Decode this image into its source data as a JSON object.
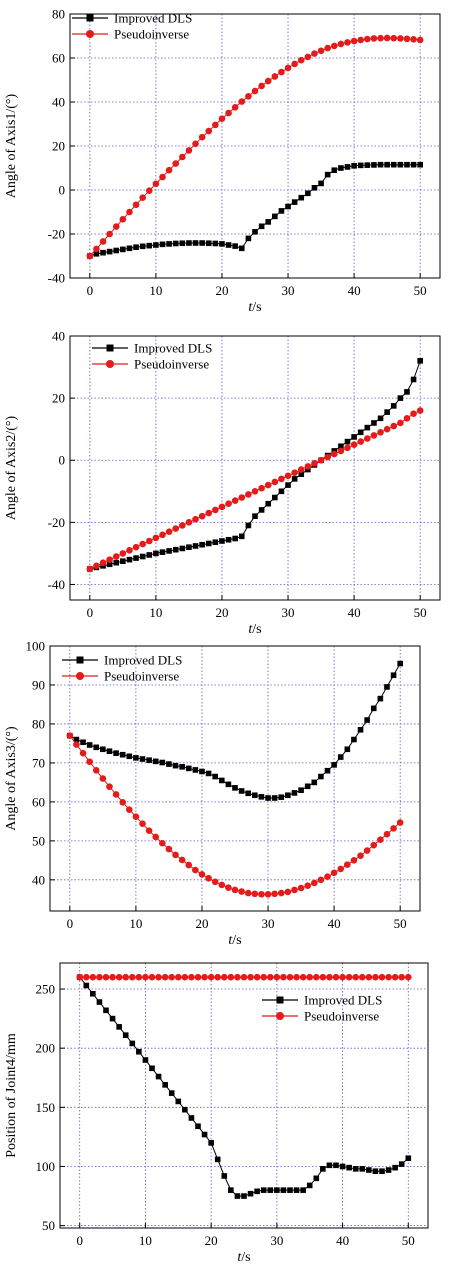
{
  "chart_data": [
    {
      "type": "line",
      "ylabel": "Angle of Axis1/(°)",
      "xlabel_italic": "t",
      "xlabel_unit": "/s",
      "xlim": [
        -3,
        53
      ],
      "ylim": [
        -40,
        80
      ],
      "xticks": [
        0,
        10,
        20,
        30,
        40,
        50
      ],
      "yticks": [
        -40,
        -20,
        0,
        20,
        40,
        60,
        80
      ],
      "grid": true,
      "legend_position": "top-left",
      "series": [
        {
          "name": "Improved DLS",
          "color": "#000000",
          "marker": "square",
          "x": [
            0,
            1,
            2,
            3,
            4,
            5,
            6,
            7,
            8,
            9,
            10,
            11,
            12,
            13,
            14,
            15,
            16,
            17,
            18,
            19,
            20,
            21,
            22,
            23,
            24,
            25,
            26,
            27,
            28,
            29,
            30,
            31,
            32,
            33,
            34,
            35,
            36,
            37,
            38,
            39,
            40,
            41,
            42,
            43,
            44,
            45,
            46,
            47,
            48,
            49,
            50
          ],
          "values": [
            -30,
            -29,
            -28.5,
            -28,
            -27.5,
            -27,
            -26.5,
            -26,
            -25.6,
            -25.3,
            -25,
            -24.7,
            -24.5,
            -24.3,
            -24.2,
            -24.1,
            -24.1,
            -24.1,
            -24.2,
            -24.3,
            -24.5,
            -25,
            -25.5,
            -26.5,
            -22,
            -19,
            -16.5,
            -14.5,
            -12,
            -9.5,
            -7.5,
            -5.5,
            -3.5,
            -1.5,
            1,
            3,
            7,
            9,
            10,
            10.5,
            11,
            11.2,
            11.3,
            11.4,
            11.5,
            11.5,
            11.5,
            11.5,
            11.5,
            11.5,
            11.5
          ]
        },
        {
          "name": "Pseudoinverse",
          "color": "#e51a1a",
          "marker": "circle",
          "x": [
            0,
            1,
            2,
            3,
            4,
            5,
            6,
            7,
            8,
            9,
            10,
            11,
            12,
            13,
            14,
            15,
            16,
            17,
            18,
            19,
            20,
            21,
            22,
            23,
            24,
            25,
            26,
            27,
            28,
            29,
            30,
            31,
            32,
            33,
            34,
            35,
            36,
            37,
            38,
            39,
            40,
            41,
            42,
            43,
            44,
            45,
            46,
            47,
            48,
            49,
            50
          ],
          "values": [
            -30,
            -26.8,
            -23.4,
            -20,
            -16.6,
            -13.3,
            -10,
            -6.7,
            -3.5,
            -0.3,
            2.8,
            5.9,
            9,
            12,
            15,
            18,
            21,
            24,
            26.8,
            29.6,
            32.4,
            35,
            37.6,
            40.2,
            42.6,
            45,
            47.3,
            49.5,
            51.6,
            53.6,
            55.5,
            57.3,
            59,
            60.5,
            62,
            63.3,
            64.5,
            65.5,
            66.4,
            67.1,
            67.7,
            68.2,
            68.6,
            68.9,
            69,
            69.1,
            69,
            68.9,
            68.7,
            68.5,
            68.2
          ]
        }
      ]
    },
    {
      "type": "line",
      "ylabel": "Angle of Axis2/(°)",
      "xlabel_italic": "t",
      "xlabel_unit": "/s",
      "xlim": [
        -3,
        53
      ],
      "ylim": [
        -45,
        40
      ],
      "xticks": [
        0,
        10,
        20,
        30,
        40,
        50
      ],
      "yticks": [
        -40,
        -20,
        0,
        20,
        40
      ],
      "grid": true,
      "legend_position": "top-left",
      "series": [
        {
          "name": "Improved DLS",
          "color": "#000000",
          "marker": "square",
          "x": [
            0,
            1,
            2,
            3,
            4,
            5,
            6,
            7,
            8,
            9,
            10,
            11,
            12,
            13,
            14,
            15,
            16,
            17,
            18,
            19,
            20,
            21,
            22,
            23,
            24,
            25,
            26,
            27,
            28,
            29,
            30,
            31,
            32,
            33,
            34,
            35,
            36,
            37,
            38,
            39,
            40,
            41,
            42,
            43,
            44,
            45,
            46,
            47,
            48,
            49,
            50
          ],
          "values": [
            -35,
            -34.5,
            -34,
            -33.5,
            -33,
            -32.5,
            -32,
            -31.5,
            -31,
            -30.5,
            -30,
            -29.6,
            -29.2,
            -28.8,
            -28.4,
            -28,
            -27.6,
            -27.2,
            -26.8,
            -26.4,
            -26,
            -25.6,
            -25.2,
            -24.5,
            -21,
            -18,
            -16,
            -14,
            -12,
            -10,
            -8,
            -6,
            -4.5,
            -3,
            -1.5,
            0,
            1.5,
            3,
            4.5,
            6,
            7.5,
            9,
            10.5,
            12,
            13.5,
            15.5,
            17.5,
            20,
            22,
            26,
            32
          ]
        },
        {
          "name": "Pseudoinverse",
          "color": "#e51a1a",
          "marker": "circle",
          "x": [
            0,
            1,
            2,
            3,
            4,
            5,
            6,
            7,
            8,
            9,
            10,
            11,
            12,
            13,
            14,
            15,
            16,
            17,
            18,
            19,
            20,
            21,
            22,
            23,
            24,
            25,
            26,
            27,
            28,
            29,
            30,
            31,
            32,
            33,
            34,
            35,
            36,
            37,
            38,
            39,
            40,
            41,
            42,
            43,
            44,
            45,
            46,
            47,
            48,
            49,
            50
          ],
          "values": [
            -35,
            -34,
            -33,
            -32,
            -31,
            -30,
            -29,
            -28,
            -27,
            -26,
            -25,
            -24,
            -23,
            -22,
            -21,
            -20,
            -19,
            -18,
            -17,
            -16,
            -15,
            -14,
            -13,
            -12,
            -11,
            -10,
            -9,
            -8,
            -7,
            -6,
            -5,
            -4,
            -3,
            -2,
            -1,
            0,
            1,
            2,
            3,
            4,
            5,
            6,
            7,
            8,
            9,
            10,
            11,
            12,
            13.5,
            15,
            16
          ]
        }
      ]
    },
    {
      "type": "line",
      "ylabel": "Angle of Axis3/(°)",
      "xlabel_italic": "t",
      "xlabel_unit": "/s",
      "xlim": [
        -3,
        53
      ],
      "ylim": [
        32,
        100
      ],
      "xticks": [
        0,
        10,
        20,
        30,
        40,
        50
      ],
      "yticks": [
        40,
        50,
        60,
        70,
        80,
        90,
        100
      ],
      "grid": true,
      "legend_position": "top-left",
      "series": [
        {
          "name": "Improved DLS",
          "color": "#000000",
          "marker": "square",
          "x": [
            0,
            1,
            2,
            3,
            4,
            5,
            6,
            7,
            8,
            9,
            10,
            11,
            12,
            13,
            14,
            15,
            16,
            17,
            18,
            19,
            20,
            21,
            22,
            23,
            24,
            25,
            26,
            27,
            28,
            29,
            30,
            31,
            32,
            33,
            34,
            35,
            36,
            37,
            38,
            39,
            40,
            41,
            42,
            43,
            44,
            45,
            46,
            47,
            48,
            49,
            50
          ],
          "values": [
            77,
            76,
            75.3,
            74.6,
            74,
            73.5,
            73,
            72.5,
            72.1,
            71.7,
            71.3,
            71,
            70.7,
            70.4,
            70.1,
            69.7,
            69.3,
            69,
            68.6,
            68.2,
            67.8,
            67.3,
            66.5,
            65.5,
            64.5,
            63.6,
            62.8,
            62.2,
            61.7,
            61.3,
            61,
            61,
            61.2,
            61.7,
            62.3,
            63,
            64,
            65,
            66.5,
            68,
            69.5,
            71.5,
            73.5,
            76,
            78.5,
            81,
            84,
            86.5,
            89.5,
            92.5,
            95.5
          ]
        },
        {
          "name": "Pseudoinverse",
          "color": "#e51a1a",
          "marker": "circle",
          "x": [
            0,
            1,
            2,
            3,
            4,
            5,
            6,
            7,
            8,
            9,
            10,
            11,
            12,
            13,
            14,
            15,
            16,
            17,
            18,
            19,
            20,
            21,
            22,
            23,
            24,
            25,
            26,
            27,
            28,
            29,
            30,
            31,
            32,
            33,
            34,
            35,
            36,
            37,
            38,
            39,
            40,
            41,
            42,
            43,
            44,
            45,
            46,
            47,
            48,
            49,
            50
          ],
          "values": [
            77,
            74.7,
            72.5,
            70.3,
            68.1,
            66,
            63.9,
            61.9,
            59.9,
            58,
            56.2,
            54.4,
            52.6,
            51,
            49.4,
            47.9,
            46.4,
            45.1,
            43.8,
            42.5,
            41.4,
            40.4,
            39.5,
            38.7,
            38,
            37.4,
            37,
            36.6,
            36.4,
            36.3,
            36.3,
            36.4,
            36.6,
            36.9,
            37.4,
            37.9,
            38.5,
            39.2,
            40,
            40.8,
            41.8,
            42.8,
            43.9,
            45,
            46.2,
            47.5,
            48.9,
            50.3,
            51.7,
            53.2,
            54.7
          ]
        }
      ]
    },
    {
      "type": "line",
      "ylabel": "Position of Joint4/mm",
      "xlabel_italic": "t",
      "xlabel_unit": "/s",
      "xlim": [
        -3,
        53
      ],
      "ylim": [
        48,
        272
      ],
      "xticks": [
        0,
        10,
        20,
        30,
        40,
        50
      ],
      "yticks": [
        50,
        100,
        150,
        200,
        250
      ],
      "grid": true,
      "legend_position": "upper-right",
      "series": [
        {
          "name": "Improved DLS",
          "color": "#000000",
          "marker": "square",
          "x": [
            0,
            1,
            2,
            3,
            4,
            5,
            6,
            7,
            8,
            9,
            10,
            11,
            12,
            13,
            14,
            15,
            16,
            17,
            18,
            19,
            20,
            21,
            22,
            23,
            24,
            25,
            26,
            27,
            28,
            29,
            30,
            31,
            32,
            33,
            34,
            35,
            36,
            37,
            38,
            39,
            40,
            41,
            42,
            43,
            44,
            45,
            46,
            47,
            48,
            49,
            50
          ],
          "values": [
            260,
            253,
            246,
            239,
            232,
            225,
            218,
            211,
            204,
            197,
            190,
            183,
            176,
            169,
            162,
            155,
            148,
            141,
            134,
            127,
            120,
            106,
            92,
            80,
            75,
            75,
            77,
            79,
            80,
            80,
            80,
            80,
            80,
            80,
            80,
            84,
            90,
            98,
            101,
            101,
            100,
            99,
            98,
            98,
            97,
            96,
            96,
            97,
            99,
            102,
            107
          ]
        },
        {
          "name": "Pseudoinverse",
          "color": "#e51a1a",
          "marker": "circle",
          "x": [
            0,
            1,
            2,
            3,
            4,
            5,
            6,
            7,
            8,
            9,
            10,
            11,
            12,
            13,
            14,
            15,
            16,
            17,
            18,
            19,
            20,
            21,
            22,
            23,
            24,
            25,
            26,
            27,
            28,
            29,
            30,
            31,
            32,
            33,
            34,
            35,
            36,
            37,
            38,
            39,
            40,
            41,
            42,
            43,
            44,
            45,
            46,
            47,
            48,
            49,
            50
          ],
          "values": [
            260,
            260,
            260,
            260,
            260,
            260,
            260,
            260,
            260,
            260,
            260,
            260,
            260,
            260,
            260,
            260,
            260,
            260,
            260,
            260,
            260,
            260,
            260,
            260,
            260,
            260,
            260,
            260,
            260,
            260,
            260,
            260,
            260,
            260,
            260,
            260,
            260,
            260,
            260,
            260,
            260,
            260,
            260,
            260,
            260,
            260,
            260,
            260,
            260,
            260,
            260
          ]
        }
      ]
    }
  ]
}
